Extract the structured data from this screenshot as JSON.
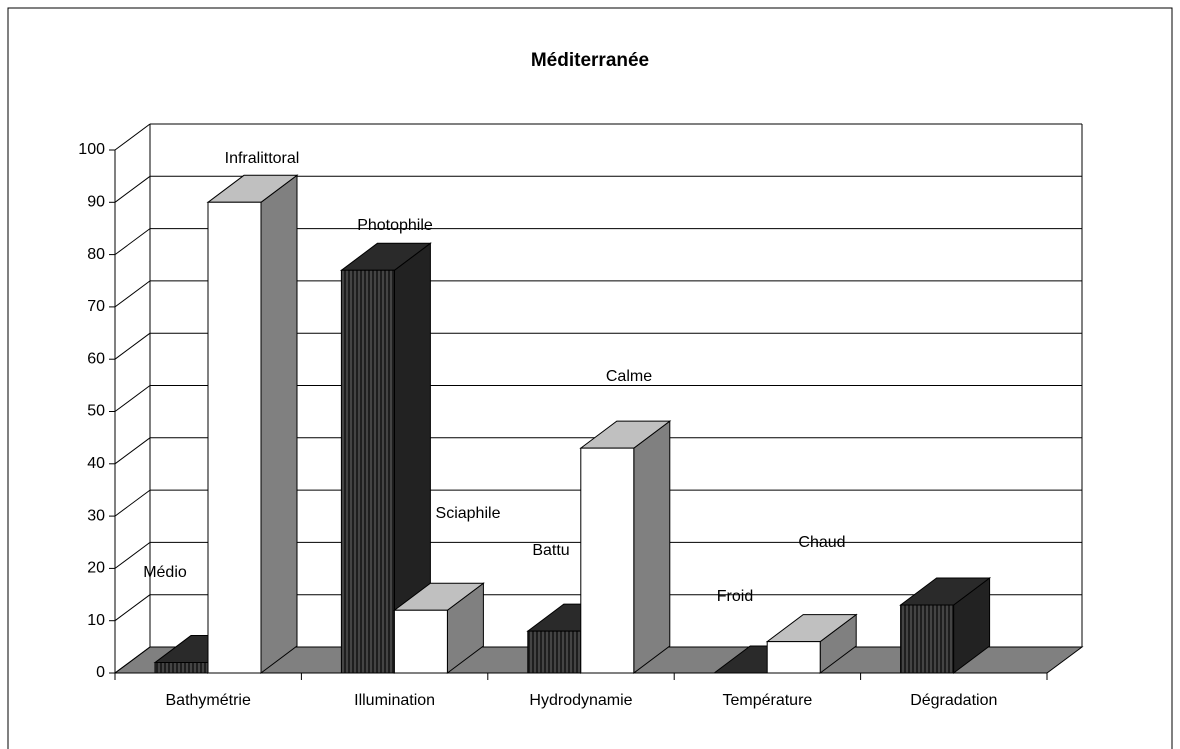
{
  "chart_data": {
    "type": "bar3d",
    "title": "Méditerranée",
    "categories": [
      "Bathymétrie",
      "Illumination",
      "Hydrodynamie",
      "Température",
      "Dégradation"
    ],
    "series": [
      {
        "color": "#333333",
        "values": [
          2,
          77,
          8,
          0,
          13
        ],
        "labels": [
          "Médio",
          "Photophile",
          "Battu",
          "Froid",
          null
        ]
      },
      {
        "color": "#ffffff",
        "values": [
          90,
          12,
          43,
          6,
          null
        ],
        "labels": [
          "Infralittoral",
          "Sciaphile",
          "Calme",
          "Chaud",
          null
        ]
      }
    ],
    "ylim": [
      0,
      100
    ],
    "yticks": [
      0,
      10,
      20,
      30,
      40,
      50,
      60,
      70,
      80,
      90,
      100
    ],
    "grid": true
  }
}
